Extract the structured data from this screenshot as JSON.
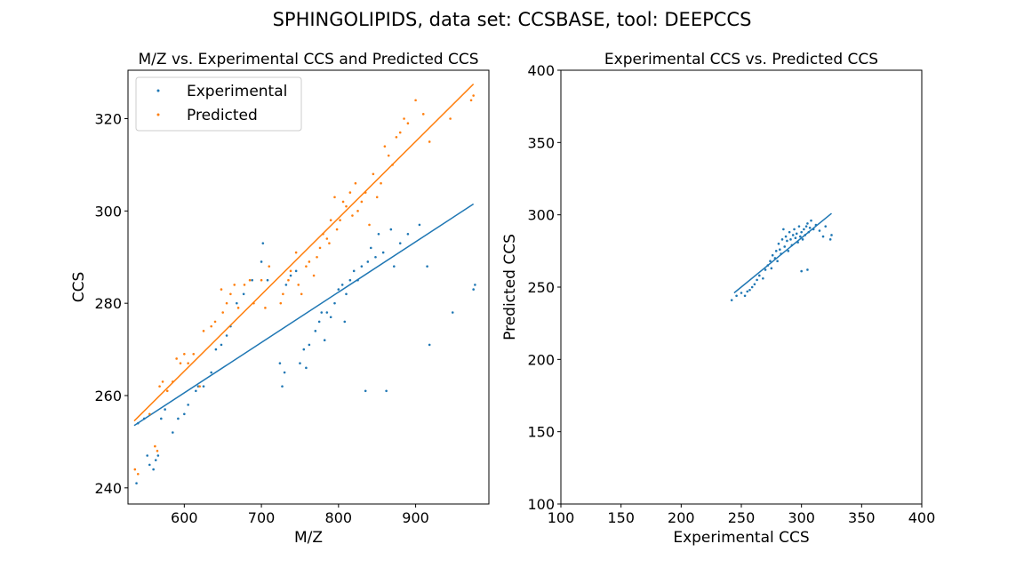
{
  "figure": {
    "suptitle": "SPHINGOLIPIDS, data set: CCSBASE, tool: DEEPCCS",
    "colors": {
      "experimental": "#1f77b4",
      "predicted": "#ff7f0e"
    }
  },
  "chart_data": [
    {
      "type": "scatter",
      "title": "M/Z vs. Experimental CCS and Predicted CCS",
      "xlabel": "M/Z",
      "ylabel": "CCS",
      "xlim": [
        527,
        995
      ],
      "ylim": [
        236.5,
        330.5
      ],
      "xticks": [
        600,
        700,
        800,
        900
      ],
      "yticks": [
        240,
        260,
        280,
        300,
        320
      ],
      "grid": false,
      "legend": "top-left",
      "series": [
        {
          "name": "Experimental",
          "color": "#1f77b4",
          "points": [
            [
              538,
              241
            ],
            [
              540,
              254
            ],
            [
              548,
              255
            ],
            [
              552,
              247
            ],
            [
              555,
              245
            ],
            [
              560,
              244
            ],
            [
              563,
              246
            ],
            [
              566,
              247
            ],
            [
              570,
              255
            ],
            [
              575,
              257
            ],
            [
              585,
              252
            ],
            [
              592,
              255
            ],
            [
              600,
              256
            ],
            [
              605,
              258
            ],
            [
              615,
              261
            ],
            [
              618,
              262
            ],
            [
              625,
              262
            ],
            [
              635,
              265
            ],
            [
              641,
              270
            ],
            [
              648,
              271
            ],
            [
              655,
              273
            ],
            [
              660,
              275
            ],
            [
              668,
              280
            ],
            [
              677,
              282
            ],
            [
              688,
              285
            ],
            [
              700,
              289
            ],
            [
              702,
              293
            ],
            [
              708,
              285
            ],
            [
              724,
              267
            ],
            [
              727,
              262
            ],
            [
              730,
              265
            ],
            [
              732,
              284
            ],
            [
              738,
              286
            ],
            [
              745,
              287
            ],
            [
              750,
              267
            ],
            [
              755,
              270
            ],
            [
              758,
              266
            ],
            [
              762,
              271
            ],
            [
              770,
              274
            ],
            [
              775,
              276
            ],
            [
              778,
              278
            ],
            [
              782,
              272
            ],
            [
              785,
              278
            ],
            [
              790,
              277
            ],
            [
              795,
              280
            ],
            [
              800,
              283
            ],
            [
              805,
              284
            ],
            [
              808,
              276
            ],
            [
              810,
              282
            ],
            [
              815,
              285
            ],
            [
              820,
              287
            ],
            [
              825,
              285
            ],
            [
              830,
              288
            ],
            [
              835,
              261
            ],
            [
              838,
              289
            ],
            [
              842,
              292
            ],
            [
              848,
              290
            ],
            [
              852,
              295
            ],
            [
              858,
              291
            ],
            [
              862,
              261
            ],
            [
              868,
              296
            ],
            [
              872,
              288
            ],
            [
              880,
              293
            ],
            [
              890,
              295
            ],
            [
              905,
              297
            ],
            [
              915,
              288
            ],
            [
              918,
              271
            ],
            [
              948,
              278
            ],
            [
              975,
              283
            ],
            [
              977,
              284
            ]
          ],
          "trend": [
            [
              535,
              253.5
            ],
            [
              975,
              301.5
            ]
          ]
        },
        {
          "name": "Predicted",
          "color": "#ff7f0e",
          "points": [
            [
              536,
              244
            ],
            [
              540,
              243
            ],
            [
              555,
              256
            ],
            [
              562,
              249
            ],
            [
              565,
              248
            ],
            [
              568,
              262
            ],
            [
              572,
              263
            ],
            [
              578,
              261
            ],
            [
              585,
              263
            ],
            [
              590,
              268
            ],
            [
              595,
              267
            ],
            [
              600,
              269
            ],
            [
              605,
              267
            ],
            [
              612,
              269
            ],
            [
              620,
              262
            ],
            [
              625,
              274
            ],
            [
              635,
              275
            ],
            [
              640,
              276
            ],
            [
              648,
              283
            ],
            [
              650,
              278
            ],
            [
              655,
              280
            ],
            [
              660,
              282
            ],
            [
              665,
              284
            ],
            [
              670,
              279
            ],
            [
              678,
              284
            ],
            [
              685,
              285
            ],
            [
              690,
              280
            ],
            [
              700,
              285
            ],
            [
              705,
              279
            ],
            [
              710,
              288
            ],
            [
              725,
              280
            ],
            [
              728,
              282
            ],
            [
              735,
              285
            ],
            [
              738,
              287
            ],
            [
              745,
              291
            ],
            [
              748,
              284
            ],
            [
              752,
              282
            ],
            [
              758,
              288
            ],
            [
              762,
              289
            ],
            [
              768,
              286
            ],
            [
              772,
              290
            ],
            [
              776,
              292
            ],
            [
              780,
              295
            ],
            [
              785,
              294
            ],
            [
              788,
              293
            ],
            [
              790,
              298
            ],
            [
              795,
              303
            ],
            [
              798,
              296
            ],
            [
              802,
              298
            ],
            [
              806,
              302
            ],
            [
              810,
              301
            ],
            [
              815,
              304
            ],
            [
              818,
              299
            ],
            [
              822,
              306
            ],
            [
              825,
              300
            ],
            [
              830,
              302
            ],
            [
              835,
              304
            ],
            [
              840,
              297
            ],
            [
              845,
              308
            ],
            [
              850,
              303
            ],
            [
              855,
              306
            ],
            [
              860,
              314
            ],
            [
              865,
              312
            ],
            [
              870,
              310
            ],
            [
              875,
              316
            ],
            [
              880,
              317
            ],
            [
              885,
              320
            ],
            [
              890,
              319
            ],
            [
              900,
              324
            ],
            [
              910,
              321
            ],
            [
              918,
              315
            ],
            [
              945,
              320
            ],
            [
              972,
              324
            ],
            [
              975,
              325
            ]
          ],
          "trend": [
            [
              535,
              254.5
            ],
            [
              975,
              327.5
            ]
          ]
        }
      ]
    },
    {
      "type": "scatter",
      "title": "Experimental CCS vs. Predicted CCS",
      "xlabel": "Experimental CCS",
      "ylabel": "Predicted CCS",
      "xlim": [
        100,
        400
      ],
      "ylim": [
        100,
        400
      ],
      "xticks": [
        100,
        150,
        200,
        250,
        300,
        350,
        400
      ],
      "yticks": [
        100,
        150,
        200,
        250,
        300,
        350,
        400
      ],
      "grid": false,
      "legend": "none",
      "series": [
        {
          "name": "",
          "color": "#1f77b4",
          "points": [
            [
              242,
              241
            ],
            [
              246,
              244
            ],
            [
              250,
              246
            ],
            [
              253,
              244
            ],
            [
              255,
              247
            ],
            [
              257,
              248
            ],
            [
              259,
              250
            ],
            [
              261,
              252
            ],
            [
              263,
              255
            ],
            [
              265,
              258
            ],
            [
              268,
              256
            ],
            [
              270,
              262
            ],
            [
              272,
              265
            ],
            [
              274,
              268
            ],
            [
              275,
              263
            ],
            [
              276,
              272
            ],
            [
              278,
              270
            ],
            [
              279,
              275
            ],
            [
              280,
              268
            ],
            [
              281,
              280
            ],
            [
              282,
              276
            ],
            [
              283,
              273
            ],
            [
              284,
              283
            ],
            [
              285,
              290
            ],
            [
              286,
              278
            ],
            [
              287,
              285
            ],
            [
              288,
              282
            ],
            [
              289,
              275
            ],
            [
              290,
              288
            ],
            [
              291,
              283
            ],
            [
              292,
              279
            ],
            [
              293,
              286
            ],
            [
              294,
              290
            ],
            [
              295,
              284
            ],
            [
              296,
              287
            ],
            [
              297,
              281
            ],
            [
              298,
              292
            ],
            [
              299,
              285
            ],
            [
              300,
              288
            ],
            [
              301,
              283
            ],
            [
              302,
              290
            ],
            [
              303,
              286
            ],
            [
              304,
              292
            ],
            [
              305,
              294
            ],
            [
              306,
              288
            ],
            [
              307,
              291
            ],
            [
              308,
              296
            ],
            [
              310,
              290
            ],
            [
              312,
              293
            ],
            [
              315,
              289
            ],
            [
              318,
              285
            ],
            [
              320,
              292
            ],
            [
              324,
              283
            ],
            [
              325,
              286
            ],
            [
              300,
              261
            ],
            [
              305,
              262
            ]
          ],
          "trend": [
            [
              244,
              246
            ],
            [
              325,
              301
            ]
          ]
        }
      ]
    }
  ]
}
